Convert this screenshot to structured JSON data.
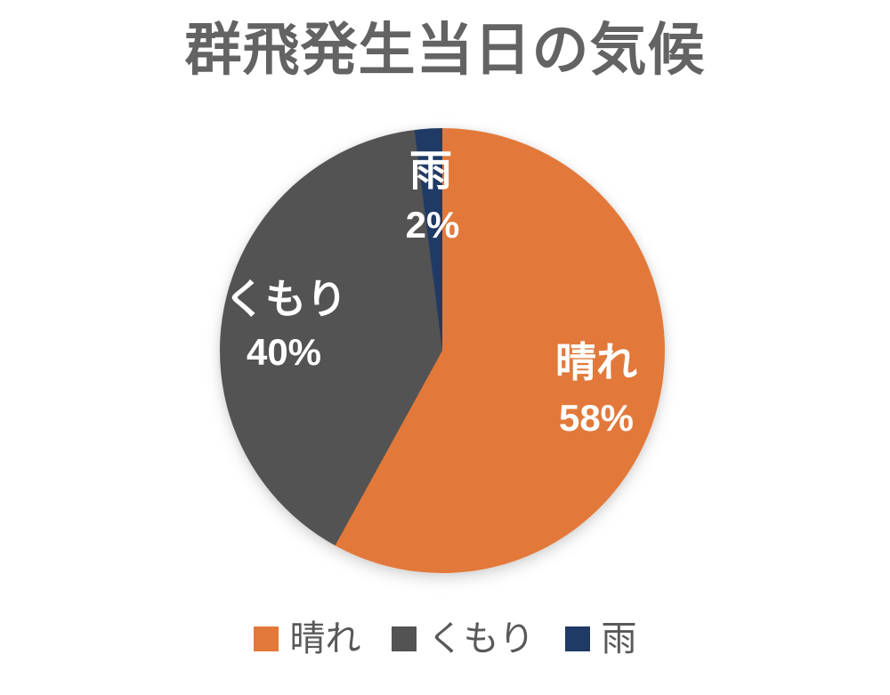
{
  "chart_data": {
    "type": "pie",
    "title": "群飛発生当日の気候",
    "slices": [
      {
        "label": "晴れ",
        "value": 58,
        "pct_label": "58%",
        "color": "#E2793A"
      },
      {
        "label": "くもり",
        "value": 40,
        "pct_label": "40%",
        "color": "#535353"
      },
      {
        "label": "雨",
        "value": 2,
        "pct_label": "2%",
        "color": "#203A66"
      }
    ],
    "start_angle_deg": 0,
    "direction": "clockwise",
    "legend_position": "bottom",
    "data_label_color": "#FFFFFF",
    "title_color": "#636363",
    "legend_text_color": "#595959",
    "background_color": "#FFFFFF"
  }
}
